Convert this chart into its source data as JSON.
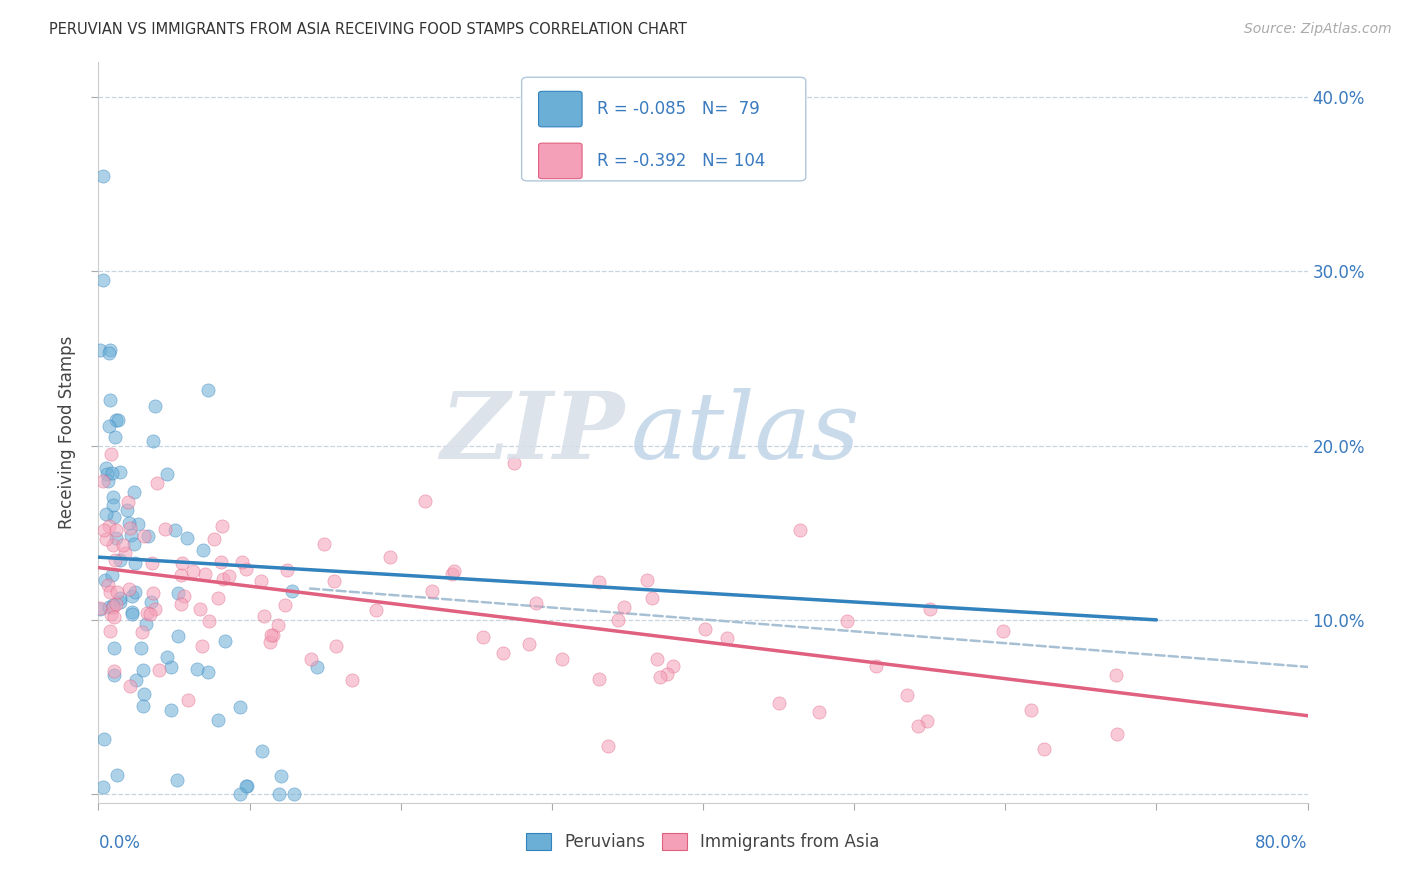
{
  "title": "PERUVIAN VS IMMIGRANTS FROM ASIA RECEIVING FOOD STAMPS CORRELATION CHART",
  "source": "Source: ZipAtlas.com",
  "ylabel": "Receiving Food Stamps",
  "xlim": [
    0.0,
    0.8
  ],
  "ylim": [
    -0.005,
    0.42
  ],
  "r_peruvian": -0.085,
  "n_peruvian": 79,
  "r_asian": -0.392,
  "n_asian": 104,
  "color_peruvian": "#6baed6",
  "color_asian": "#f4a0b8",
  "color_peruvian_line": "#3182bd",
  "color_asian_line": "#e06080",
  "color_dashed": "#a8c0d4",
  "watermark_zip": "ZIP",
  "watermark_atlas": "atlas",
  "legend_label_peruvian": "Peruvians",
  "legend_label_asian": "Immigrants from Asia",
  "blue_line": [
    [
      0.0,
      0.136
    ],
    [
      0.7,
      0.1
    ]
  ],
  "pink_line": [
    [
      0.0,
      0.13
    ],
    [
      0.8,
      0.045
    ]
  ],
  "dashed_line": [
    [
      0.14,
      0.118
    ],
    [
      0.8,
      0.073
    ]
  ]
}
